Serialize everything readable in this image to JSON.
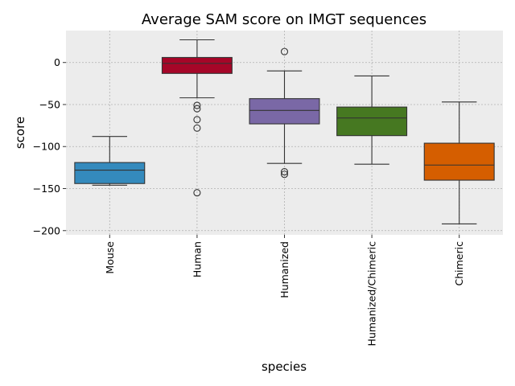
{
  "chart_data": {
    "type": "box",
    "title": "Average SAM score on IMGT sequences",
    "xlabel": "species",
    "ylabel": "score",
    "ylim": [
      -205,
      38
    ],
    "yticks": [
      0,
      -50,
      -100,
      -150,
      -200
    ],
    "grid": true,
    "legend": "none",
    "background": "#ececec",
    "grid_color": "#b0b0b0",
    "categories": [
      "Mouse",
      "Human",
      "Humanized",
      "Humanized/Chimeric",
      "Chimeric"
    ],
    "boxes": [
      {
        "category": "Mouse",
        "color": "#348abd",
        "whisker_low": -146,
        "q1": -144,
        "median": -128,
        "q3": -119,
        "whisker_high": -88,
        "outliers": []
      },
      {
        "category": "Human",
        "color": "#a60628",
        "whisker_low": -42,
        "q1": -13,
        "median": -1,
        "q3": 6,
        "whisker_high": 27,
        "outliers": [
          -51,
          -55,
          -68,
          -78,
          -155
        ]
      },
      {
        "category": "Humanized",
        "color": "#7a68a6",
        "whisker_low": -120,
        "q1": -73,
        "median": -57,
        "q3": -43,
        "whisker_high": -10,
        "outliers": [
          13,
          -130,
          -133
        ]
      },
      {
        "category": "Humanized/Chimeric",
        "color": "#467821",
        "whisker_low": -121,
        "q1": -87,
        "median": -66,
        "q3": -53,
        "whisker_high": -16,
        "outliers": []
      },
      {
        "category": "Chimeric",
        "color": "#d55e00",
        "whisker_low": -192,
        "q1": -140,
        "median": -122,
        "q3": -96,
        "whisker_high": -47,
        "outliers": []
      }
    ]
  }
}
